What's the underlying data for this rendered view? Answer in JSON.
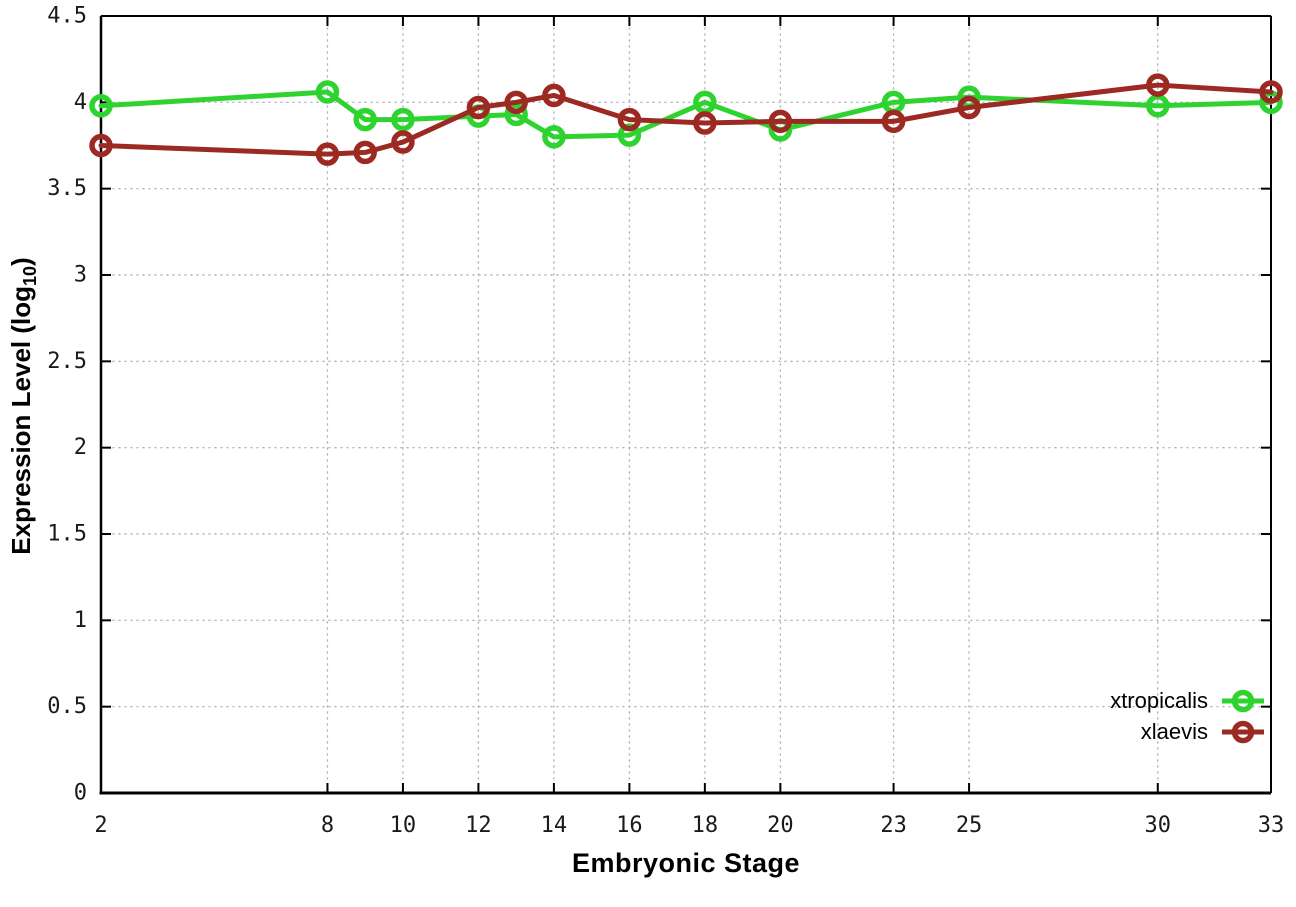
{
  "chart_data": {
    "type": "line",
    "title": "",
    "xlabel": "Embryonic Stage",
    "ylabel": "Expression Level (log10)",
    "ylabel_parts": {
      "pre": "Expression Level (log",
      "sub": "10",
      "post": ")"
    },
    "xlim": [
      2,
      33
    ],
    "ylim": [
      0,
      4.5
    ],
    "grid": true,
    "legend_position": "inside bottom-right",
    "x": [
      2,
      8,
      9,
      10,
      12,
      13,
      14,
      16,
      18,
      20,
      23,
      25,
      30,
      33
    ],
    "xticks": [
      2,
      8,
      10,
      12,
      14,
      16,
      18,
      20,
      23,
      25,
      30,
      33
    ],
    "xtick_labels": [
      "2",
      "8",
      "10",
      "12",
      "14",
      "16",
      "18",
      "20",
      "23",
      "25",
      "30",
      "33"
    ],
    "yticks": [
      0,
      0.5,
      1,
      1.5,
      2,
      2.5,
      3,
      3.5,
      4,
      4.5
    ],
    "ytick_labels": [
      "0",
      "0.5",
      "1",
      "1.5",
      "2",
      "2.5",
      "3",
      "3.5",
      "4",
      "4.5"
    ],
    "series": [
      {
        "name": "xtropicalis",
        "color": "#2fd32f",
        "values": [
          3.98,
          4.06,
          3.9,
          3.9,
          3.92,
          3.93,
          3.8,
          3.81,
          4.0,
          3.84,
          4.0,
          4.03,
          3.98,
          4.0
        ]
      },
      {
        "name": "xlaevis",
        "color": "#9c2a23",
        "values": [
          3.75,
          3.7,
          3.71,
          3.77,
          3.97,
          4.0,
          4.04,
          3.9,
          3.88,
          3.89,
          3.89,
          3.97,
          4.1,
          4.06
        ]
      }
    ],
    "style": {
      "grid_color": "#b0b0c0",
      "border_color": "#000000",
      "background": "#ffffff",
      "line_width": 5,
      "marker": "open-circle",
      "marker_radius": 9,
      "marker_stroke": 5.5
    }
  }
}
